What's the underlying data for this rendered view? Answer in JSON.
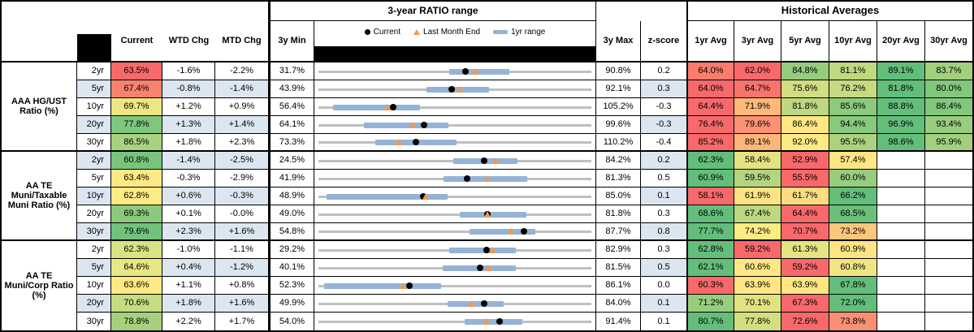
{
  "titles": {
    "range": "3-year RATIO range",
    "historical": "Historical Averages"
  },
  "columns": {
    "current": "Current",
    "wtd": "WTD Chg",
    "mtd": "MTD Chg",
    "min": "3y Min",
    "max": "3y Max",
    "z": "z-score",
    "averages": [
      "1yr Avg",
      "3yr Avg",
      "5yr Avg",
      "10yr Avg",
      "20yr Avg",
      "30yr Avg"
    ]
  },
  "legend": [
    {
      "icon": "circle",
      "color": "#000000",
      "label": "Current"
    },
    {
      "icon": "triangle",
      "color": "#F79646",
      "label": "Last Month End"
    },
    {
      "icon": "bar",
      "color": "#95B3D7",
      "label": "1yr range"
    }
  ],
  "colors": {
    "stripe": "#DCE6F1",
    "track": "#BFBFBF",
    "range_bar": "#95B3D7",
    "current_marker": "#000000",
    "last_month_marker": "#F79646",
    "scale_low": "#F8696B",
    "scale_mid": "#FFEB84",
    "scale_high": "#63BE7B"
  },
  "chart_data": {
    "type": "table",
    "groups": [
      {
        "label": "AAA HG/UST Ratio (%)",
        "rows": [
          {
            "tenor": "2yr",
            "current": "63.5%",
            "current_color": "#F8696B",
            "wtd": "-1.6%",
            "mtd": "-2.2%",
            "min": "31.7%",
            "max": "90.8%",
            "z": "0.2",
            "range_chart": {
              "axis_min": 31.7,
              "axis_max": 90.8,
              "current": 63.5,
              "last_month_end": 65.7,
              "band_lo": 60.0,
              "band_hi": 73.0
            },
            "averages": [
              "64.0%",
              "62.0%",
              "84.8%",
              "81.1%",
              "89.1%",
              "83.7%"
            ]
          },
          {
            "tenor": "5yr",
            "current": "67.4%",
            "current_color": "#F9826F",
            "wtd": "-0.8%",
            "mtd": "-1.4%",
            "min": "43.9%",
            "max": "92.1%",
            "z": "0.3",
            "range_chart": {
              "axis_min": 43.9,
              "axis_max": 92.1,
              "current": 67.4,
              "last_month_end": 68.8,
              "band_lo": 63.0,
              "band_hi": 74.0
            },
            "averages": [
              "64.0%",
              "64.7%",
              "75.6%",
              "76.2%",
              "81.8%",
              "80.0%"
            ]
          },
          {
            "tenor": "10yr",
            "current": "69.7%",
            "current_color": "#EDE683",
            "wtd": "+1.2%",
            "mtd": "+0.9%",
            "min": "56.4%",
            "max": "105.2%",
            "z": "-0.3",
            "range_chart": {
              "axis_min": 56.4,
              "axis_max": 105.2,
              "current": 69.7,
              "last_month_end": 68.8,
              "band_lo": 59.0,
              "band_hi": 74.5
            },
            "averages": [
              "64.4%",
              "71.9%",
              "81.8%",
              "85.6%",
              "88.8%",
              "86.4%"
            ]
          },
          {
            "tenor": "20yr",
            "current": "77.8%",
            "current_color": "#7EC77D",
            "wtd": "+1.3%",
            "mtd": "+1.4%",
            "min": "64.1%",
            "max": "99.6%",
            "z": "-0.3",
            "range_chart": {
              "axis_min": 64.1,
              "axis_max": 99.6,
              "current": 77.8,
              "last_month_end": 76.4,
              "band_lo": 70.0,
              "band_hi": 81.0
            },
            "averages": [
              "76.4%",
              "79.6%",
              "86.4%",
              "94.4%",
              "96.9%",
              "93.4%"
            ]
          },
          {
            "tenor": "30yr",
            "current": "86.5%",
            "current_color": "#A9D27E",
            "wtd": "+1.8%",
            "mtd": "+2.3%",
            "min": "73.3%",
            "max": "110.2%",
            "z": "-0.4",
            "range_chart": {
              "axis_min": 73.3,
              "axis_max": 110.2,
              "current": 86.5,
              "last_month_end": 84.2,
              "band_lo": 81.0,
              "band_hi": 92.0
            },
            "averages": [
              "85.2%",
              "89.1%",
              "92.0%",
              "95.5%",
              "98.6%",
              "95.9%"
            ]
          }
        ]
      },
      {
        "label": "AA TE Muni/Taxable Muni Ratio (%)",
        "rows": [
          {
            "tenor": "2yr",
            "current": "60.8%",
            "current_color": "#79C57C",
            "wtd": "-1.4%",
            "mtd": "-2.5%",
            "min": "24.5%",
            "max": "84.2%",
            "z": "0.2",
            "range_chart": {
              "axis_min": 24.5,
              "axis_max": 84.2,
              "current": 60.8,
              "last_month_end": 63.3,
              "band_lo": 54.0,
              "band_hi": 68.0
            },
            "averages": [
              "62.3%",
              "58.4%",
              "52.9%",
              "57.4%"
            ]
          },
          {
            "tenor": "5yr",
            "current": "63.4%",
            "current_color": "#FFE984",
            "wtd": "-0.3%",
            "mtd": "-2.9%",
            "min": "41.9%",
            "max": "81.3%",
            "z": "0.5",
            "range_chart": {
              "axis_min": 41.9,
              "axis_max": 81.3,
              "current": 63.4,
              "last_month_end": 66.3,
              "band_lo": 60.0,
              "band_hi": 72.0
            },
            "averages": [
              "60.9%",
              "59.5%",
              "55.5%",
              "60.0%"
            ]
          },
          {
            "tenor": "10yr",
            "current": "62.8%",
            "current_color": "#FFEB84",
            "wtd": "+0.6%",
            "mtd": "-0.3%",
            "min": "48.9%",
            "max": "85.0%",
            "z": "0.1",
            "range_chart": {
              "axis_min": 48.9,
              "axis_max": 85.0,
              "current": 62.8,
              "last_month_end": 63.1,
              "band_lo": 50.0,
              "band_hi": 66.0
            },
            "averages": [
              "58.1%",
              "61.9%",
              "61.7%",
              "66.2%"
            ]
          },
          {
            "tenor": "20yr",
            "current": "69.3%",
            "current_color": "#8BC97D",
            "wtd": "+0.1%",
            "mtd": "-0.0%",
            "min": "49.0%",
            "max": "81.8%",
            "z": "0.3",
            "range_chart": {
              "axis_min": 49.0,
              "axis_max": 81.8,
              "current": 69.3,
              "last_month_end": 69.3,
              "band_lo": 66.0,
              "band_hi": 74.0
            },
            "averages": [
              "68.6%",
              "67.4%",
              "64.4%",
              "68.5%"
            ]
          },
          {
            "tenor": "30yr",
            "current": "79.6%",
            "current_color": "#70C27C",
            "wtd": "+2.3%",
            "mtd": "+1.6%",
            "min": "54.8%",
            "max": "87.7%",
            "z": "0.8",
            "range_chart": {
              "axis_min": 54.8,
              "axis_max": 87.7,
              "current": 79.6,
              "last_month_end": 78.0,
              "band_lo": 73.0,
              "band_hi": 81.0
            },
            "averages": [
              "77.7%",
              "74.2%",
              "70.7%",
              "73.2%"
            ]
          }
        ]
      },
      {
        "label": "AA TE Muni/Corp Ratio (%)",
        "rows": [
          {
            "tenor": "2yr",
            "current": "62.3%",
            "current_color": "#D9E383",
            "wtd": "-1.0%",
            "mtd": "-1.1%",
            "min": "29.2%",
            "max": "82.9%",
            "z": "0.3",
            "range_chart": {
              "axis_min": 29.2,
              "axis_max": 82.9,
              "current": 62.3,
              "last_month_end": 63.4,
              "band_lo": 55.0,
              "band_hi": 68.0
            },
            "averages": [
              "62.8%",
              "59.2%",
              "61.3%",
              "60.9%"
            ]
          },
          {
            "tenor": "5yr",
            "current": "64.6%",
            "current_color": "#E9E784",
            "wtd": "+0.4%",
            "mtd": "-1.2%",
            "min": "40.1%",
            "max": "81.5%",
            "z": "0.5",
            "range_chart": {
              "axis_min": 40.1,
              "axis_max": 81.5,
              "current": 64.6,
              "last_month_end": 65.8,
              "band_lo": 59.0,
              "band_hi": 70.0
            },
            "averages": [
              "62.1%",
              "60.6%",
              "59.2%",
              "60.8%"
            ]
          },
          {
            "tenor": "10yr",
            "current": "63.6%",
            "current_color": "#FFE984",
            "wtd": "+1.1%",
            "mtd": "+0.8%",
            "min": "52.3%",
            "max": "86.1%",
            "z": "0.0",
            "range_chart": {
              "axis_min": 52.3,
              "axis_max": 86.1,
              "current": 63.6,
              "last_month_end": 62.8,
              "band_lo": 53.0,
              "band_hi": 67.5
            },
            "averages": [
              "60.3%",
              "63.9%",
              "63.9%",
              "67.8%"
            ]
          },
          {
            "tenor": "20yr",
            "current": "70.6%",
            "current_color": "#C6DC81",
            "wtd": "+1.8%",
            "mtd": "+1.6%",
            "min": "49.9%",
            "max": "84.0%",
            "z": "0.1",
            "range_chart": {
              "axis_min": 49.9,
              "axis_max": 84.0,
              "current": 70.6,
              "last_month_end": 69.0,
              "band_lo": 66.0,
              "band_hi": 73.0
            },
            "averages": [
              "71.2%",
              "70.1%",
              "67.3%",
              "72.0%"
            ]
          },
          {
            "tenor": "30yr",
            "current": "78.8%",
            "current_color": "#A5D17E",
            "wtd": "+2.2%",
            "mtd": "+1.7%",
            "min": "54.0%",
            "max": "91.4%",
            "z": "0.1",
            "range_chart": {
              "axis_min": 54.0,
              "axis_max": 91.4,
              "current": 78.8,
              "last_month_end": 77.1,
              "band_lo": 74.0,
              "band_hi": 82.0
            },
            "averages": [
              "80.7%",
              "77.8%",
              "72.6%",
              "73.8%"
            ]
          }
        ]
      }
    ]
  }
}
